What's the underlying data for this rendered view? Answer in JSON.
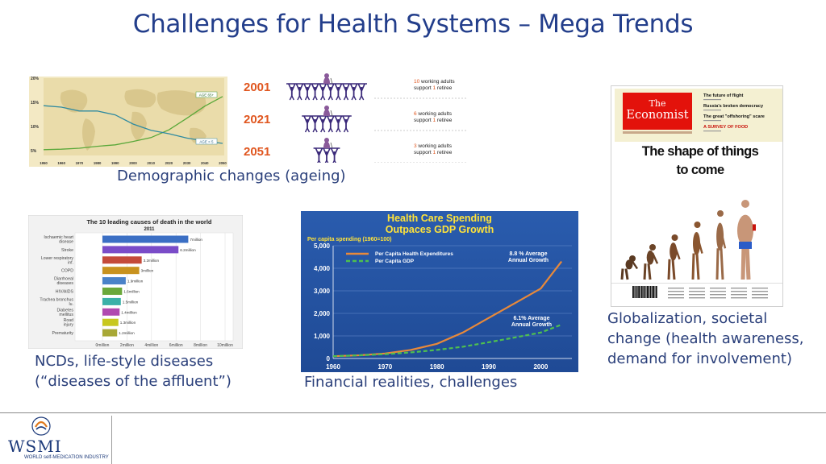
{
  "slide": {
    "title": "Challenges for Health Systems – Mega Trends",
    "captions": {
      "demographic": "Demographic changes (ageing)",
      "ncd_line1": "NCDs, life-style diseases",
      "ncd_line2": "(“diseases of the affluent”)",
      "financial": "Financial realities, challenges",
      "glob_line1": "Globalization, societal",
      "glob_line2": "change (health awareness,",
      "glob_line3": "demand for involvement)"
    }
  },
  "demographic_chart": {
    "y_ticks": [
      "20%",
      "15%",
      "10%",
      "5%"
    ],
    "x_ticks": [
      "1950",
      "1960",
      "1970",
      "1980",
      "1990",
      "2000",
      "2010",
      "2020",
      "2030",
      "2040",
      "2050"
    ],
    "labels": {
      "age65": "AGE 65+",
      "age5": "AGE < 5"
    }
  },
  "support_ratio": {
    "rows": [
      {
        "year": "2001",
        "workers": 10,
        "line1_num": "10",
        "line1_text": " working adults",
        "line2a": "support ",
        "line2num": "1",
        "line2b": " retiree"
      },
      {
        "year": "2021",
        "workers": 6,
        "line1_num": "6",
        "line1_text": " working adults",
        "line2a": "support ",
        "line2num": "1",
        "line2b": " retiree"
      },
      {
        "year": "2051",
        "workers": 3,
        "line1_num": "3",
        "line1_text": " working adults",
        "line2a": "support ",
        "line2num": "1",
        "line2b": " retiree"
      }
    ],
    "colors": {
      "year": "#e0561f",
      "figure": "#3b2a7a",
      "retiree": "#8a5a9a",
      "num": "#e0561f"
    }
  },
  "causes_chart": {
    "title_line1": "The 10 leading causes of death in the world",
    "title_line2": "2011",
    "categories": [
      "Ischaemic heart disease",
      "Stroke",
      "Lower respiratory inf.",
      "COPD",
      "Diarrhoeal diseases",
      "HIV/AIDS",
      "Trachea bronchus lu.",
      "Diabetes mellitus",
      "Road injury",
      "Prematurity"
    ],
    "value_labels": [
      "7million",
      "6.2million",
      "3.2million",
      "3million",
      "1.9million",
      "1.6million",
      "1.5million",
      "1.4million",
      "1.3million",
      "1.2million"
    ],
    "values": [
      7.0,
      6.2,
      3.2,
      3.0,
      1.9,
      1.6,
      1.5,
      1.4,
      1.3,
      1.2
    ],
    "x_ticks": [
      "0million",
      "2million",
      "4million",
      "6million",
      "8million",
      "10million"
    ],
    "xlim": [
      0,
      10
    ]
  },
  "spending_chart": {
    "title_line1": "Health Care Spending",
    "title_line2": "Outpaces GDP Growth",
    "subtitle": "Per capita spending (1960=100)",
    "y_ticks": [
      "5,000",
      "4,000",
      "3,000",
      "2,000",
      "1,000",
      "0"
    ],
    "x_ticks": [
      "1960",
      "1970",
      "1980",
      "1990",
      "2000"
    ],
    "legend": {
      "health": "Per Capita Health Expenditures",
      "gdp": "Per Capita GDP"
    },
    "annotations": {
      "health_line1": "8.8 % Average",
      "health_line2": "Annual Growth",
      "gdp_line1": "6.1% Average",
      "gdp_line2": "Annual Growth"
    },
    "colors": {
      "bg": "#2451a0",
      "title": "#ffe33a",
      "health": "#e8893a",
      "gdp": "#4fc04f"
    }
  },
  "chart_data": [
    {
      "type": "bar",
      "categories": [
        "Ischaemic heart disease",
        "Stroke",
        "Lower respiratory inf.",
        "COPD",
        "Diarrhoeal diseases",
        "HIV/AIDS",
        "Trachea bronchus lu.",
        "Diabetes mellitus",
        "Road injury",
        "Prematurity"
      ],
      "values": [
        7.0,
        6.2,
        3.2,
        3.0,
        1.9,
        1.6,
        1.5,
        1.4,
        1.3,
        1.2
      ],
      "title": "The 10 leading causes of death in the world 2011",
      "xlim": [
        0,
        10
      ],
      "orientation": "horizontal"
    },
    {
      "type": "line",
      "title": "Health Care Spending Outpaces GDP Growth",
      "ylabel": "Per capita spending (1960=100)",
      "x": [
        1960,
        1965,
        1970,
        1975,
        1980,
        1985,
        1990,
        1995,
        2000,
        2004
      ],
      "series": [
        {
          "name": "Per Capita Health Expenditures",
          "values": [
            100,
            140,
            220,
            380,
            650,
            1150,
            1800,
            2450,
            3100,
            4300
          ]
        },
        {
          "name": "Per Capita GDP",
          "values": [
            100,
            140,
            190,
            270,
            380,
            520,
            720,
            930,
            1150,
            1500
          ]
        }
      ],
      "ylim": [
        0,
        5000
      ],
      "xlim": [
        1960,
        2006
      ]
    },
    {
      "type": "line",
      "title": "",
      "x": [
        1950,
        1960,
        1970,
        1980,
        1990,
        2000,
        2010,
        2020,
        2030,
        2040,
        2050
      ],
      "series": [
        {
          "name": "AGE 65+",
          "values": [
            5.2,
            5.3,
            5.5,
            5.9,
            6.2,
            6.9,
            7.7,
            9.3,
            11.7,
            14.2,
            16.2
          ]
        },
        {
          "name": "AGE < 5",
          "values": [
            14.3,
            14.0,
            13.2,
            13.2,
            12.4,
            10.5,
            9.2,
            8.5,
            7.6,
            7.0,
            6.5
          ]
        }
      ],
      "ylim": [
        4,
        20
      ]
    }
  ],
  "economist": {
    "masthead_line1": "The",
    "masthead_line2": "Economist",
    "side_items": [
      "The future of flight",
      "Russia's broken democracy",
      "The great \"offshoring\" scare",
      "A SURVEY OF FOOD"
    ],
    "headline_line1": "The shape of things",
    "headline_line2": "to come",
    "colors": {
      "masthead": "#e3120b",
      "cover_bg": "#f4f0d2"
    }
  },
  "footer": {
    "logo_text": "WSMI",
    "logo_sub": "WORLD self-MEDICATION INDUSTRY"
  }
}
